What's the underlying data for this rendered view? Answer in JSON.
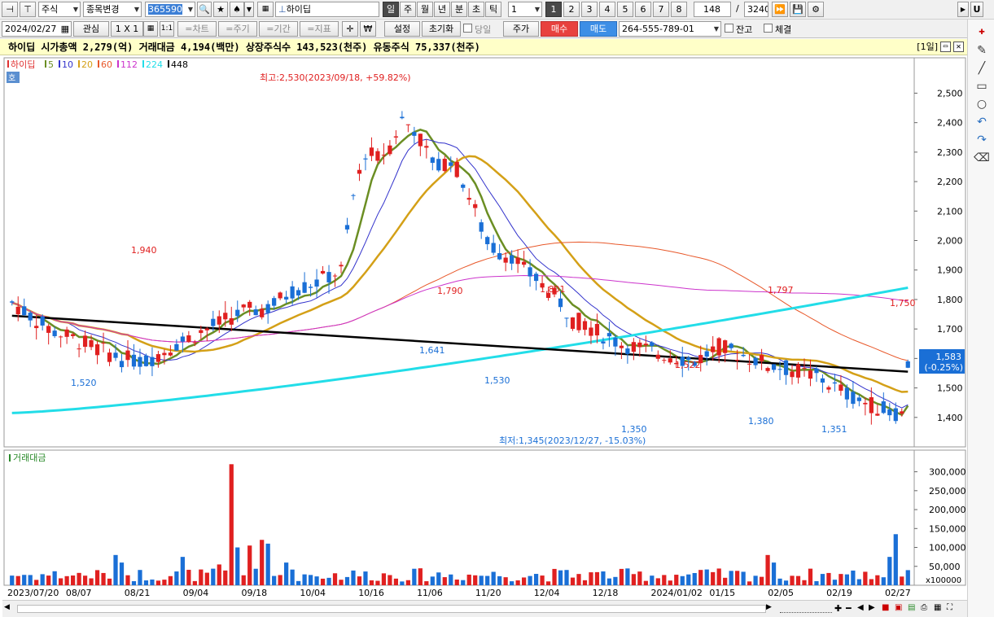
{
  "toolbar1": {
    "market_type": "주식",
    "stock_change": "종목변경",
    "stock_code": "365590",
    "stock_name": "하이딥",
    "periods": [
      "일",
      "주",
      "월",
      "년",
      "분",
      "초",
      "틱"
    ],
    "interval_value": "1",
    "pages": [
      "1",
      "2",
      "3",
      "4",
      "5",
      "6",
      "7",
      "8"
    ],
    "bar_count": "148",
    "slash": "/",
    "total_count": "3240",
    "u_button": "U"
  },
  "toolbar2": {
    "date": "2024/02/27",
    "watch": "관심",
    "layout": "1 X 1",
    "one_to_one": "1:1",
    "tabs": [
      "=차트",
      "=주기",
      "=기간",
      "=지표"
    ],
    "won": "₩",
    "settings": "설정",
    "reset": "초기화",
    "same_day": "당일",
    "price": "주가",
    "buy": "매수",
    "sell": "매도",
    "account": "264-555-789-01",
    "balance": "잔고",
    "execution": "체결"
  },
  "info_bar": {
    "text": "하이딥 시가총액 2,279(억) 거래대금 4,194(백만) 상장주식수 143,523(천주) 유동주식 75,337(천주)",
    "period_tag": "[1일]"
  },
  "chart_data": {
    "type": "candlestick",
    "legend": [
      {
        "name": "하이딥",
        "color": "#e03131"
      },
      {
        "name": "5",
        "color": "#6b8e23"
      },
      {
        "name": "10",
        "color": "#3333cc"
      },
      {
        "name": "20",
        "color": "#d4a017"
      },
      {
        "name": "60",
        "color": "#e8582a"
      },
      {
        "name": "112",
        "color": "#cc33cc"
      },
      {
        "name": "224",
        "color": "#22dde8"
      },
      {
        "name": "448",
        "color": "#000000"
      }
    ],
    "price_axis": {
      "ticks": [
        "2,500",
        "2,400",
        "2,300",
        "2,200",
        "2,100",
        "2,000",
        "1,900",
        "1,800",
        "1,700",
        "1,600",
        "1,500",
        "1,400"
      ],
      "ylim": [
        1300,
        2620
      ]
    },
    "volume_axis": {
      "ticks": [
        "300,000",
        "250,000",
        "200,000",
        "150,000",
        "100,000",
        "50,000"
      ],
      "unit": "x100000",
      "ylim": [
        0,
        340000
      ]
    },
    "x_labels": [
      "2023/07/20",
      "08/07",
      "08/21",
      "09/04",
      "09/18",
      "10/04",
      "10/16",
      "11/06",
      "11/20",
      "12/04",
      "12/18",
      "2024/01/02",
      "01/15",
      "02/05",
      "02/19",
      "02/27"
    ],
    "current_price": "1,583",
    "current_change": "(-0.25%)",
    "high_label": "최고:2,530(2023/09/18, +59.82%)",
    "low_label": "최저:1,345(2023/12/27, -15.03%)",
    "peak_labels": [
      "1,940",
      "1,790",
      "1,801",
      "1,522",
      "1,797",
      "1,750"
    ],
    "trough_labels": [
      "1,520",
      "1,641",
      "1,530",
      "1,350",
      "1,380",
      "1,351"
    ],
    "volume_title": "거래대금",
    "ho_label": "호"
  }
}
